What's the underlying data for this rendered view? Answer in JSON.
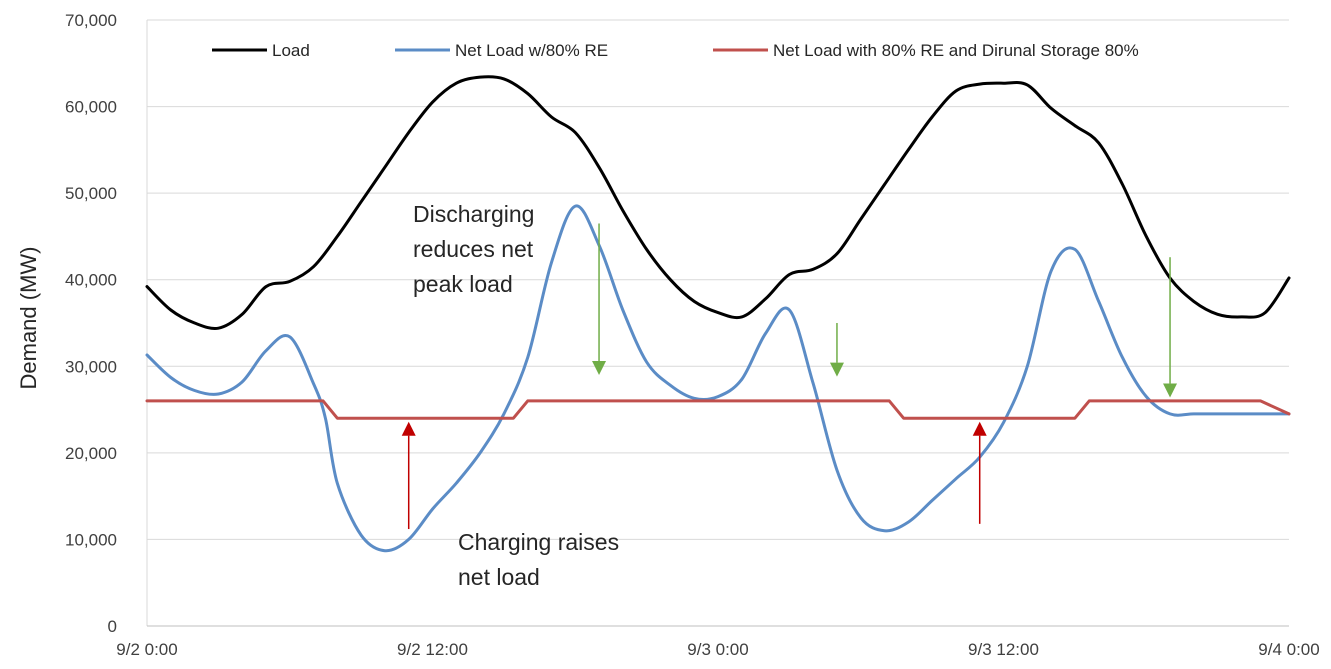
{
  "chart_data": {
    "type": "line",
    "title": "",
    "xlabel": "",
    "ylabel": "Demand (MW)",
    "ylim": [
      0,
      70000
    ],
    "yticks": [
      0,
      10000,
      20000,
      30000,
      40000,
      50000,
      60000,
      70000
    ],
    "ytick_labels": [
      "0",
      "10,000",
      "20,000",
      "30,000",
      "40,000",
      "50,000",
      "60,000",
      "70,000"
    ],
    "xlim_hours": [
      0,
      48
    ],
    "xticks_hours": [
      0,
      12,
      24,
      36,
      48
    ],
    "xtick_labels": [
      "9/2 0:00",
      "9/2 12:00",
      "9/3 0:00",
      "9/3 12:00",
      "9/4 0:00"
    ],
    "grid": "horizontal",
    "legend_position": "top",
    "series": [
      {
        "name": "Load",
        "color": "#000000",
        "x": [
          0,
          1,
          2,
          3,
          4,
          5,
          6,
          7,
          8,
          9,
          10,
          11,
          12,
          13,
          14,
          15,
          16,
          17,
          18,
          19,
          20,
          21,
          22,
          23,
          24,
          25,
          26,
          27,
          28,
          29,
          30,
          31,
          32,
          33,
          34,
          35,
          36,
          37,
          38,
          39,
          40,
          41,
          42,
          43,
          44,
          45,
          46,
          47,
          48
        ],
        "values": [
          39200,
          36500,
          35000,
          34400,
          36000,
          39200,
          39800,
          41500,
          45000,
          49000,
          53000,
          57000,
          60500,
          62700,
          63400,
          63200,
          61500,
          58800,
          57000,
          53000,
          48000,
          43500,
          40000,
          37500,
          36200,
          35700,
          37800,
          40600,
          41200,
          43000,
          47000,
          51000,
          55000,
          58800,
          61800,
          62600,
          62700,
          62500,
          59800,
          57800,
          55800,
          51000,
          45000,
          40200,
          37500,
          36000,
          35700,
          36200,
          40200
        ]
      },
      {
        "name": "Net Load w/80% RE",
        "color": "#5b8cc6",
        "x": [
          0,
          1,
          2,
          3,
          4,
          5,
          6,
          7,
          7.5,
          8,
          9,
          10,
          11,
          12,
          13,
          14,
          15,
          16,
          17,
          18,
          19,
          20,
          21,
          22,
          23,
          24,
          25,
          26,
          27,
          28,
          29,
          30,
          31,
          32,
          33,
          34,
          35,
          36,
          37,
          38,
          39,
          40,
          41,
          42,
          43,
          44,
          45,
          46,
          47,
          48
        ],
        "values": [
          31300,
          28700,
          27200,
          26800,
          28200,
          31800,
          33400,
          28000,
          24000,
          16500,
          10500,
          8700,
          10000,
          13500,
          16500,
          20000,
          24500,
          31000,
          42000,
          48500,
          44000,
          36500,
          30500,
          27800,
          26300,
          26500,
          28500,
          33800,
          36500,
          28000,
          18000,
          12500,
          11000,
          12000,
          14500,
          17000,
          19500,
          23500,
          30000,
          41000,
          43500,
          37500,
          31000,
          26500,
          24500,
          24500,
          24500,
          24500,
          24500,
          24500
        ]
      },
      {
        "name": "Net Load with 80% RE and Dirunal Storage 80%",
        "color": "#c0504d",
        "x": [
          0,
          7.4,
          8,
          15.4,
          16,
          31.2,
          31.8,
          39,
          39.6,
          46.8,
          48
        ],
        "values": [
          26000,
          26000,
          24000,
          24000,
          26000,
          26000,
          24000,
          24000,
          26000,
          26000,
          24500
        ]
      }
    ],
    "annotations": [
      {
        "text_lines": [
          "Discharging",
          "reduces net",
          "peak load"
        ]
      },
      {
        "text_lines": [
          "Charging raises",
          "net load"
        ]
      }
    ]
  }
}
